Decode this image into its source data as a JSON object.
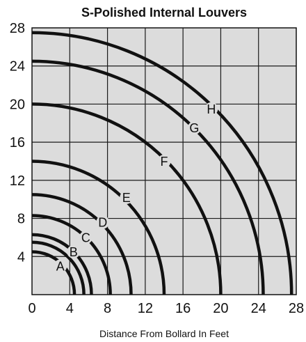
{
  "chart_data": {
    "type": "line",
    "title": "S-Polished Internal Louvers",
    "xlabel": "Distance From Bollard In Feet",
    "ylabel": "",
    "xlim": [
      0,
      28
    ],
    "ylim": [
      0,
      28
    ],
    "x_ticks": [
      "0",
      "4",
      "8",
      "12",
      "16",
      "20",
      "24",
      "28"
    ],
    "y_ticks": [
      "4",
      "8",
      "12",
      "16",
      "20",
      "24",
      "28"
    ],
    "grid": true,
    "grid_step": 4,
    "background": "#dcdcdc",
    "line_color": "#111111",
    "series": [
      {
        "name": "A",
        "radius": 4.5
      },
      {
        "name": "B",
        "radius": 5.5
      },
      {
        "name": "C",
        "radius": 6.3
      },
      {
        "name": "D",
        "radius": 8.3
      },
      {
        "name": "E",
        "radius": 10.5
      },
      {
        "name": "F",
        "radius": 14.0
      },
      {
        "name": "G",
        "radius": 20.0
      },
      {
        "name": "H",
        "radius": 24.5
      },
      {
        "name": "",
        "radius": 27.5
      }
    ],
    "labels": [
      {
        "text": "A",
        "x": 3.0,
        "y": 3.0
      },
      {
        "text": "B",
        "x": 4.4,
        "y": 4.5
      },
      {
        "text": "C",
        "x": 5.7,
        "y": 6.0
      },
      {
        "text": "D",
        "x": 7.5,
        "y": 7.6
      },
      {
        "text": "E",
        "x": 10.0,
        "y": 10.2
      },
      {
        "text": "F",
        "x": 14.0,
        "y": 14.0
      },
      {
        "text": "G",
        "x": 17.2,
        "y": 17.5
      },
      {
        "text": "H",
        "x": 19.0,
        "y": 19.5
      }
    ]
  }
}
